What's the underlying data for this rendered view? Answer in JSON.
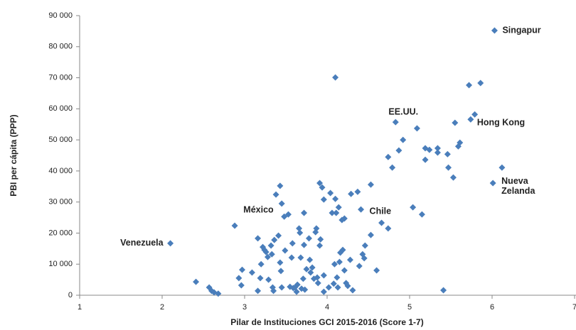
{
  "chart_data": {
    "type": "scatter",
    "xlabel": "Pilar de Instituciones GCI 2015-2016  (Score 1-7)",
    "ylabel": "PBI per cápita (PPP)",
    "color": "#4a7ebb",
    "xlim": [
      1,
      7
    ],
    "xticks": [
      1,
      2,
      3,
      4,
      5,
      6,
      7
    ],
    "ylim": [
      0,
      90000
    ],
    "yticks": [
      0,
      {
        "value": 10000,
        "label": "10 000"
      },
      {
        "value": 20000,
        "label": "20 000"
      },
      {
        "value": 30000,
        "label": "30 000"
      },
      {
        "value": 40000,
        "label": "40 000"
      },
      {
        "value": 50000,
        "label": "50 000"
      },
      {
        "value": 60000,
        "label": "60 000"
      },
      {
        "value": 70000,
        "label": "70 000"
      },
      {
        "value": 80000,
        "label": "80 000"
      },
      {
        "value": 90000,
        "label": "90 000"
      }
    ],
    "x": [
      2.1,
      3.48,
      4.41,
      4.83,
      5.74,
      6.01,
      6.03,
      2.41,
      2.57,
      2.6,
      2.63,
      2.68,
      2.88,
      2.93,
      2.97,
      2.96,
      3.09,
      3.16,
      3.16,
      3.19,
      3.2,
      3.22,
      3.24,
      3.26,
      3.28,
      3.29,
      3.32,
      3.33,
      3.34,
      3.35,
      3.36,
      3.38,
      3.41,
      3.43,
      3.43,
      3.45,
      3.44,
      3.45,
      3.49,
      3.53,
      3.55,
      3.57,
      3.58,
      3.59,
      3.61,
      3.63,
      3.64,
      3.66,
      3.67,
      3.68,
      3.69,
      3.71,
      3.72,
      3.72,
      3.73,
      3.75,
      3.78,
      3.79,
      3.8,
      3.82,
      3.84,
      3.86,
      3.87,
      3.88,
      3.89,
      3.91,
      3.91,
      3.92,
      3.94,
      3.96,
      3.96,
      3.96,
      4.02,
      4.04,
      4.06,
      4.08,
      4.09,
      4.1,
      4.1,
      4.11,
      4.12,
      4.13,
      4.14,
      4.15,
      4.16,
      4.18,
      4.19,
      4.21,
      4.21,
      4.23,
      4.25,
      4.28,
      4.29,
      4.31,
      4.37,
      4.39,
      4.46,
      4.43,
      4.45,
      4.53,
      4.53,
      4.6,
      4.66,
      4.74,
      4.74,
      4.79,
      4.87,
      4.92,
      5.04,
      5.09,
      5.15,
      5.19,
      5.19,
      5.24,
      5.34,
      5.34,
      5.41,
      5.46,
      5.47,
      5.53,
      5.55,
      5.59,
      5.61,
      5.72,
      5.79,
      5.86,
      6.12
    ],
    "values": [
      16700,
      25300,
      27600,
      55700,
      56600,
      36100,
      85200,
      4300,
      2500,
      1400,
      900,
      500,
      22400,
      5500,
      8200,
      3200,
      7300,
      18300,
      1400,
      5500,
      10000,
      15500,
      14600,
      13900,
      12300,
      5000,
      16000,
      13200,
      2500,
      1400,
      17800,
      32400,
      19200,
      10500,
      35200,
      29500,
      7800,
      2500,
      14400,
      26000,
      2700,
      12100,
      16700,
      2300,
      2500,
      1100,
      3400,
      21500,
      20100,
      12100,
      2100,
      5300,
      16200,
      26500,
      1800,
      8400,
      18300,
      11400,
      7300,
      8900,
      5300,
      20300,
      21500,
      5700,
      3900,
      36100,
      16000,
      18000,
      34700,
      30800,
      6400,
      1100,
      2500,
      32900,
      26500,
      3700,
      10000,
      70100,
      31000,
      26500,
      5700,
      2500,
      28300,
      10700,
      13700,
      24200,
      14600,
      24700,
      8000,
      3900,
      3000,
      11400,
      32600,
      1600,
      33300,
      9400,
      16000,
      13200,
      11900,
      35600,
      19400,
      8000,
      23300,
      21500,
      44500,
      41100,
      46600,
      50000,
      28300,
      53700,
      26000,
      43600,
      47300,
      46800,
      45900,
      47300,
      1600,
      45400,
      41100,
      37900,
      55500,
      47900,
      49100,
      67600,
      58200,
      68300,
      41100
    ],
    "labels": [
      "Venezuela",
      "México",
      "Chile",
      "EE.UU.",
      "Hong  Kong",
      "Nueva Zelanda",
      "Singapur",
      null,
      null,
      null,
      null,
      null,
      null,
      null,
      null,
      null,
      null,
      null,
      null,
      null,
      null,
      null,
      null,
      null,
      null,
      null,
      null,
      null,
      null,
      null,
      null,
      null,
      null,
      null,
      null,
      null,
      null,
      null,
      null,
      null,
      null,
      null,
      null,
      null,
      null,
      null,
      null,
      null,
      null,
      null,
      null,
      null,
      null,
      null,
      null,
      null,
      null,
      null,
      null,
      null,
      null,
      null,
      null,
      null,
      null,
      null,
      null,
      null,
      null,
      null,
      null,
      null,
      null,
      null,
      null,
      null,
      null,
      null,
      null,
      null,
      null,
      null,
      null,
      null,
      null,
      null,
      null,
      null,
      null,
      null,
      null,
      null,
      null,
      null,
      null,
      null,
      null,
      null,
      null,
      null,
      null,
      null,
      null,
      null,
      null,
      null,
      null,
      null,
      null,
      null,
      null,
      null,
      null,
      null,
      null,
      null,
      null,
      null,
      null,
      null,
      null,
      null,
      null,
      null,
      null,
      null,
      null
    ]
  }
}
